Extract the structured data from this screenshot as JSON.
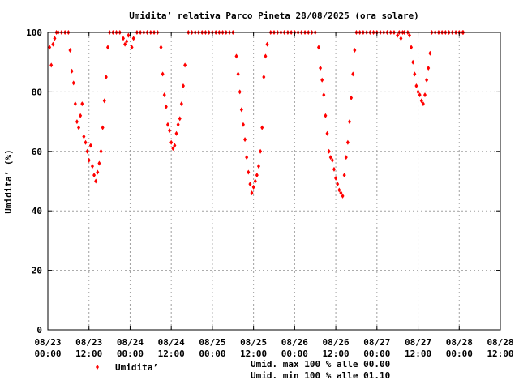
{
  "chart_data": {
    "type": "scatter",
    "title": "Umidita’ relativa Parco Pineta 28/08/2025 (ora solare)",
    "ylabel": "Umidita’ (%)",
    "xlabel": "",
    "ylim": [
      0,
      100
    ],
    "xlim": [
      "08/23 00:00",
      "08/28 12:00"
    ],
    "yticks": [
      "0",
      "20",
      "40",
      "60",
      "80",
      "100"
    ],
    "xticks": [
      {
        "date": "08/23",
        "time": "00:00"
      },
      {
        "date": "08/23",
        "time": "12:00"
      },
      {
        "date": "08/24",
        "time": "00:00"
      },
      {
        "date": "08/24",
        "time": "12:00"
      },
      {
        "date": "08/25",
        "time": "00:00"
      },
      {
        "date": "08/25",
        "time": "12:00"
      },
      {
        "date": "08/26",
        "time": "00:00"
      },
      {
        "date": "08/26",
        "time": "12:00"
      },
      {
        "date": "08/27",
        "time": "00:00"
      },
      {
        "date": "08/27",
        "time": "12:00"
      },
      {
        "date": "08/28",
        "time": "00:00"
      },
      {
        "date": "08/28",
        "time": "12:00"
      }
    ],
    "grid": true,
    "legend_position": "bottom-left",
    "series": [
      {
        "name": "Umidita’",
        "color": "#ff0000",
        "marker": "diamond",
        "points": [
          [
            "08/23 00:30",
            95
          ],
          [
            "08/23 01:00",
            89
          ],
          [
            "08/23 01:30",
            96
          ],
          [
            "08/23 02:00",
            98
          ],
          [
            "08/23 02:30",
            100
          ],
          [
            "08/23 03:00",
            100
          ],
          [
            "08/23 04:00",
            100
          ],
          [
            "08/23 05:00",
            100
          ],
          [
            "08/23 06:00",
            100
          ],
          [
            "08/23 06:30",
            94
          ],
          [
            "08/23 07:00",
            87
          ],
          [
            "08/23 07:30",
            83
          ],
          [
            "08/23 08:00",
            76
          ],
          [
            "08/23 08:30",
            70
          ],
          [
            "08/23 09:00",
            68
          ],
          [
            "08/23 09:30",
            72
          ],
          [
            "08/23 10:00",
            76
          ],
          [
            "08/23 10:30",
            65
          ],
          [
            "08/23 11:00",
            63
          ],
          [
            "08/23 11:30",
            60
          ],
          [
            "08/23 12:00",
            57
          ],
          [
            "08/23 12:30",
            62
          ],
          [
            "08/23 13:00",
            55
          ],
          [
            "08/23 13:30",
            52
          ],
          [
            "08/23 14:00",
            50
          ],
          [
            "08/23 14:30",
            53
          ],
          [
            "08/23 15:00",
            56
          ],
          [
            "08/23 15:30",
            60
          ],
          [
            "08/23 16:00",
            68
          ],
          [
            "08/23 16:30",
            77
          ],
          [
            "08/23 17:00",
            85
          ],
          [
            "08/23 17:30",
            95
          ],
          [
            "08/23 18:00",
            100
          ],
          [
            "08/23 19:00",
            100
          ],
          [
            "08/23 20:00",
            100
          ],
          [
            "08/23 21:00",
            100
          ],
          [
            "08/23 22:00",
            98
          ],
          [
            "08/23 22:30",
            96
          ],
          [
            "08/23 23:00",
            97
          ],
          [
            "08/23 23:30",
            99
          ],
          [
            "08/24 00:30",
            95
          ],
          [
            "08/24 01:00",
            98
          ],
          [
            "08/24 02:00",
            100
          ],
          [
            "08/24 03:00",
            100
          ],
          [
            "08/24 04:00",
            100
          ],
          [
            "08/24 05:00",
            100
          ],
          [
            "08/24 06:00",
            100
          ],
          [
            "08/24 07:00",
            100
          ],
          [
            "08/24 08:00",
            100
          ],
          [
            "08/24 09:00",
            95
          ],
          [
            "08/24 09:30",
            86
          ],
          [
            "08/24 10:00",
            79
          ],
          [
            "08/24 10:30",
            75
          ],
          [
            "08/24 11:00",
            69
          ],
          [
            "08/24 11:30",
            67
          ],
          [
            "08/24 12:00",
            63
          ],
          [
            "08/24 12:30",
            61
          ],
          [
            "08/24 13:00",
            62
          ],
          [
            "08/24 13:30",
            66
          ],
          [
            "08/24 14:00",
            69
          ],
          [
            "08/24 14:30",
            71
          ],
          [
            "08/24 15:00",
            76
          ],
          [
            "08/24 15:30",
            82
          ],
          [
            "08/24 16:00",
            89
          ],
          [
            "08/24 17:00",
            100
          ],
          [
            "08/24 18:00",
            100
          ],
          [
            "08/24 19:00",
            100
          ],
          [
            "08/24 20:00",
            100
          ],
          [
            "08/24 21:00",
            100
          ],
          [
            "08/24 22:00",
            100
          ],
          [
            "08/24 23:00",
            100
          ],
          [
            "08/25 00:00",
            100
          ],
          [
            "08/25 01:00",
            100
          ],
          [
            "08/25 02:00",
            100
          ],
          [
            "08/25 03:00",
            100
          ],
          [
            "08/25 04:00",
            100
          ],
          [
            "08/25 05:00",
            100
          ],
          [
            "08/25 06:00",
            100
          ],
          [
            "08/25 07:00",
            92
          ],
          [
            "08/25 07:30",
            86
          ],
          [
            "08/25 08:00",
            80
          ],
          [
            "08/25 08:30",
            74
          ],
          [
            "08/25 09:00",
            69
          ],
          [
            "08/25 09:30",
            64
          ],
          [
            "08/25 10:00",
            58
          ],
          [
            "08/25 10:30",
            53
          ],
          [
            "08/25 11:00",
            49
          ],
          [
            "08/25 11:30",
            46
          ],
          [
            "08/25 12:00",
            48
          ],
          [
            "08/25 12:30",
            50
          ],
          [
            "08/25 13:00",
            52
          ],
          [
            "08/25 13:30",
            55
          ],
          [
            "08/25 14:00",
            60
          ],
          [
            "08/25 14:30",
            68
          ],
          [
            "08/25 15:00",
            85
          ],
          [
            "08/25 15:30",
            92
          ],
          [
            "08/25 16:00",
            96
          ],
          [
            "08/25 17:00",
            100
          ],
          [
            "08/25 18:00",
            100
          ],
          [
            "08/25 19:00",
            100
          ],
          [
            "08/25 20:00",
            100
          ],
          [
            "08/25 21:00",
            100
          ],
          [
            "08/25 22:00",
            100
          ],
          [
            "08/25 23:00",
            100
          ],
          [
            "08/26 00:00",
            100
          ],
          [
            "08/26 01:00",
            100
          ],
          [
            "08/26 02:00",
            100
          ],
          [
            "08/26 03:00",
            100
          ],
          [
            "08/26 04:00",
            100
          ],
          [
            "08/26 05:00",
            100
          ],
          [
            "08/26 06:00",
            100
          ],
          [
            "08/26 07:00",
            95
          ],
          [
            "08/26 07:30",
            88
          ],
          [
            "08/26 08:00",
            84
          ],
          [
            "08/26 08:30",
            79
          ],
          [
            "08/26 09:00",
            72
          ],
          [
            "08/26 09:30",
            66
          ],
          [
            "08/26 10:00",
            60
          ],
          [
            "08/26 10:30",
            58
          ],
          [
            "08/26 11:00",
            57
          ],
          [
            "08/26 11:30",
            54
          ],
          [
            "08/26 12:00",
            51
          ],
          [
            "08/26 12:30",
            49
          ],
          [
            "08/26 13:00",
            47
          ],
          [
            "08/26 13:30",
            46
          ],
          [
            "08/26 14:00",
            45
          ],
          [
            "08/26 14:30",
            52
          ],
          [
            "08/26 15:00",
            58
          ],
          [
            "08/26 15:30",
            63
          ],
          [
            "08/26 16:00",
            70
          ],
          [
            "08/26 16:30",
            78
          ],
          [
            "08/26 17:00",
            86
          ],
          [
            "08/26 17:30",
            94
          ],
          [
            "08/26 18:00",
            100
          ],
          [
            "08/26 19:00",
            100
          ],
          [
            "08/26 20:00",
            100
          ],
          [
            "08/26 21:00",
            100
          ],
          [
            "08/26 22:00",
            100
          ],
          [
            "08/26 23:00",
            100
          ],
          [
            "08/27 00:00",
            100
          ],
          [
            "08/27 01:00",
            100
          ],
          [
            "08/27 02:00",
            100
          ],
          [
            "08/27 03:00",
            100
          ],
          [
            "08/27 04:00",
            100
          ],
          [
            "08/27 05:00",
            100
          ],
          [
            "08/27 06:00",
            99
          ],
          [
            "08/27 06:30",
            100
          ],
          [
            "08/27 07:00",
            98
          ],
          [
            "08/27 07:30",
            100
          ],
          [
            "08/27 08:00",
            100
          ],
          [
            "08/27 09:00",
            100
          ],
          [
            "08/27 09:30",
            99
          ],
          [
            "08/27 10:00",
            95
          ],
          [
            "08/27 10:30",
            90
          ],
          [
            "08/27 11:00",
            86
          ],
          [
            "08/27 11:30",
            82
          ],
          [
            "08/27 12:00",
            80
          ],
          [
            "08/27 12:30",
            79
          ],
          [
            "08/27 13:00",
            77
          ],
          [
            "08/27 13:30",
            76
          ],
          [
            "08/27 14:00",
            79
          ],
          [
            "08/27 14:30",
            84
          ],
          [
            "08/27 15:00",
            88
          ],
          [
            "08/27 15:30",
            93
          ],
          [
            "08/27 16:00",
            100
          ],
          [
            "08/27 17:00",
            100
          ],
          [
            "08/27 18:00",
            100
          ],
          [
            "08/27 19:00",
            100
          ],
          [
            "08/27 20:00",
            100
          ],
          [
            "08/27 21:00",
            100
          ],
          [
            "08/27 22:00",
            100
          ],
          [
            "08/27 23:00",
            100
          ],
          [
            "08/28 00:00",
            100
          ],
          [
            "08/28 01:00",
            100
          ],
          [
            "08/28 01:10",
            100
          ]
        ]
      }
    ],
    "annotations": [
      "Umid. max 100 % alle 00.00",
      "Umid. min 100 % alle 01.10"
    ]
  }
}
